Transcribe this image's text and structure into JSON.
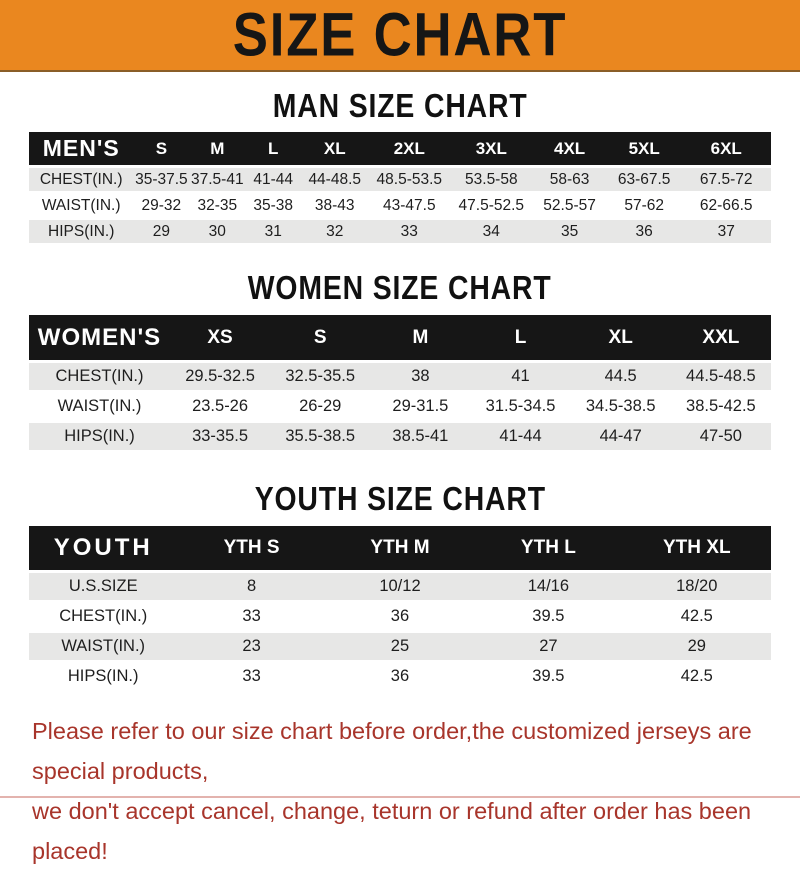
{
  "banner": {
    "title": "SIZE CHART",
    "bg_color": "#EA871F",
    "text_color": "#161616"
  },
  "chart_data": [
    {
      "id": "men",
      "type": "table",
      "title": "MAN SIZE CHART",
      "header_label": "MEN'S",
      "columns": [
        "S",
        "M",
        "L",
        "XL",
        "2XL",
        "3XL",
        "4XL",
        "5XL",
        "6XL"
      ],
      "rows": [
        {
          "label": "CHEST(IN.)",
          "values": [
            "35-37.5",
            "37.5-41",
            "41-44",
            "44-48.5",
            "48.5-53.5",
            "53.5-58",
            "58-63",
            "63-67.5",
            "67.5-72"
          ]
        },
        {
          "label": "WAIST(IN.)",
          "values": [
            "29-32",
            "32-35",
            "35-38",
            "38-43",
            "43-47.5",
            "47.5-52.5",
            "52.5-57",
            "57-62",
            "62-66.5"
          ]
        },
        {
          "label": "HIPS(IN.)",
          "values": [
            "29",
            "30",
            "31",
            "32",
            "33",
            "34",
            "35",
            "36",
            "37"
          ]
        }
      ]
    },
    {
      "id": "women",
      "type": "table",
      "title": "WOMEN SIZE CHART",
      "header_label": "WOMEN'S",
      "columns": [
        "XS",
        "S",
        "M",
        "L",
        "XL",
        "XXL"
      ],
      "rows": [
        {
          "label": "CHEST(IN.)",
          "values": [
            "29.5-32.5",
            "32.5-35.5",
            "38",
            "41",
            "44.5",
            "44.5-48.5"
          ]
        },
        {
          "label": "WAIST(IN.)",
          "values": [
            "23.5-26",
            "26-29",
            "29-31.5",
            "31.5-34.5",
            "34.5-38.5",
            "38.5-42.5"
          ]
        },
        {
          "label": "HIPS(IN.)",
          "values": [
            "33-35.5",
            "35.5-38.5",
            "38.5-41",
            "41-44",
            "44-47",
            "47-50"
          ]
        }
      ]
    },
    {
      "id": "youth",
      "type": "table",
      "title": "YOUTH SIZE CHART",
      "header_label": "YOUTH",
      "columns": [
        "YTH S",
        "YTH M",
        "YTH L",
        "YTH XL"
      ],
      "rows": [
        {
          "label": "U.S.SIZE",
          "values": [
            "8",
            "10/12",
            "14/16",
            "18/20"
          ]
        },
        {
          "label": "CHEST(IN.)",
          "values": [
            "33",
            "36",
            "39.5",
            "42.5"
          ]
        },
        {
          "label": "WAIST(IN.)",
          "values": [
            "23",
            "25",
            "27",
            "29"
          ]
        },
        {
          "label": "HIPS(IN.)",
          "values": [
            "33",
            "36",
            "39.5",
            "42.5"
          ]
        }
      ]
    }
  ],
  "footer": {
    "line1": "Please refer to our size chart before order,the customized jerseys are special products,",
    "line2": "we don't accept cancel, change, teturn or refund after order has been placed!",
    "text_color": "#A8352B"
  },
  "colors": {
    "banner_orange": "#EA871F",
    "header_bar_black": "#161616",
    "row_gray": "#E7E7E6",
    "footer_red": "#A8352B"
  }
}
